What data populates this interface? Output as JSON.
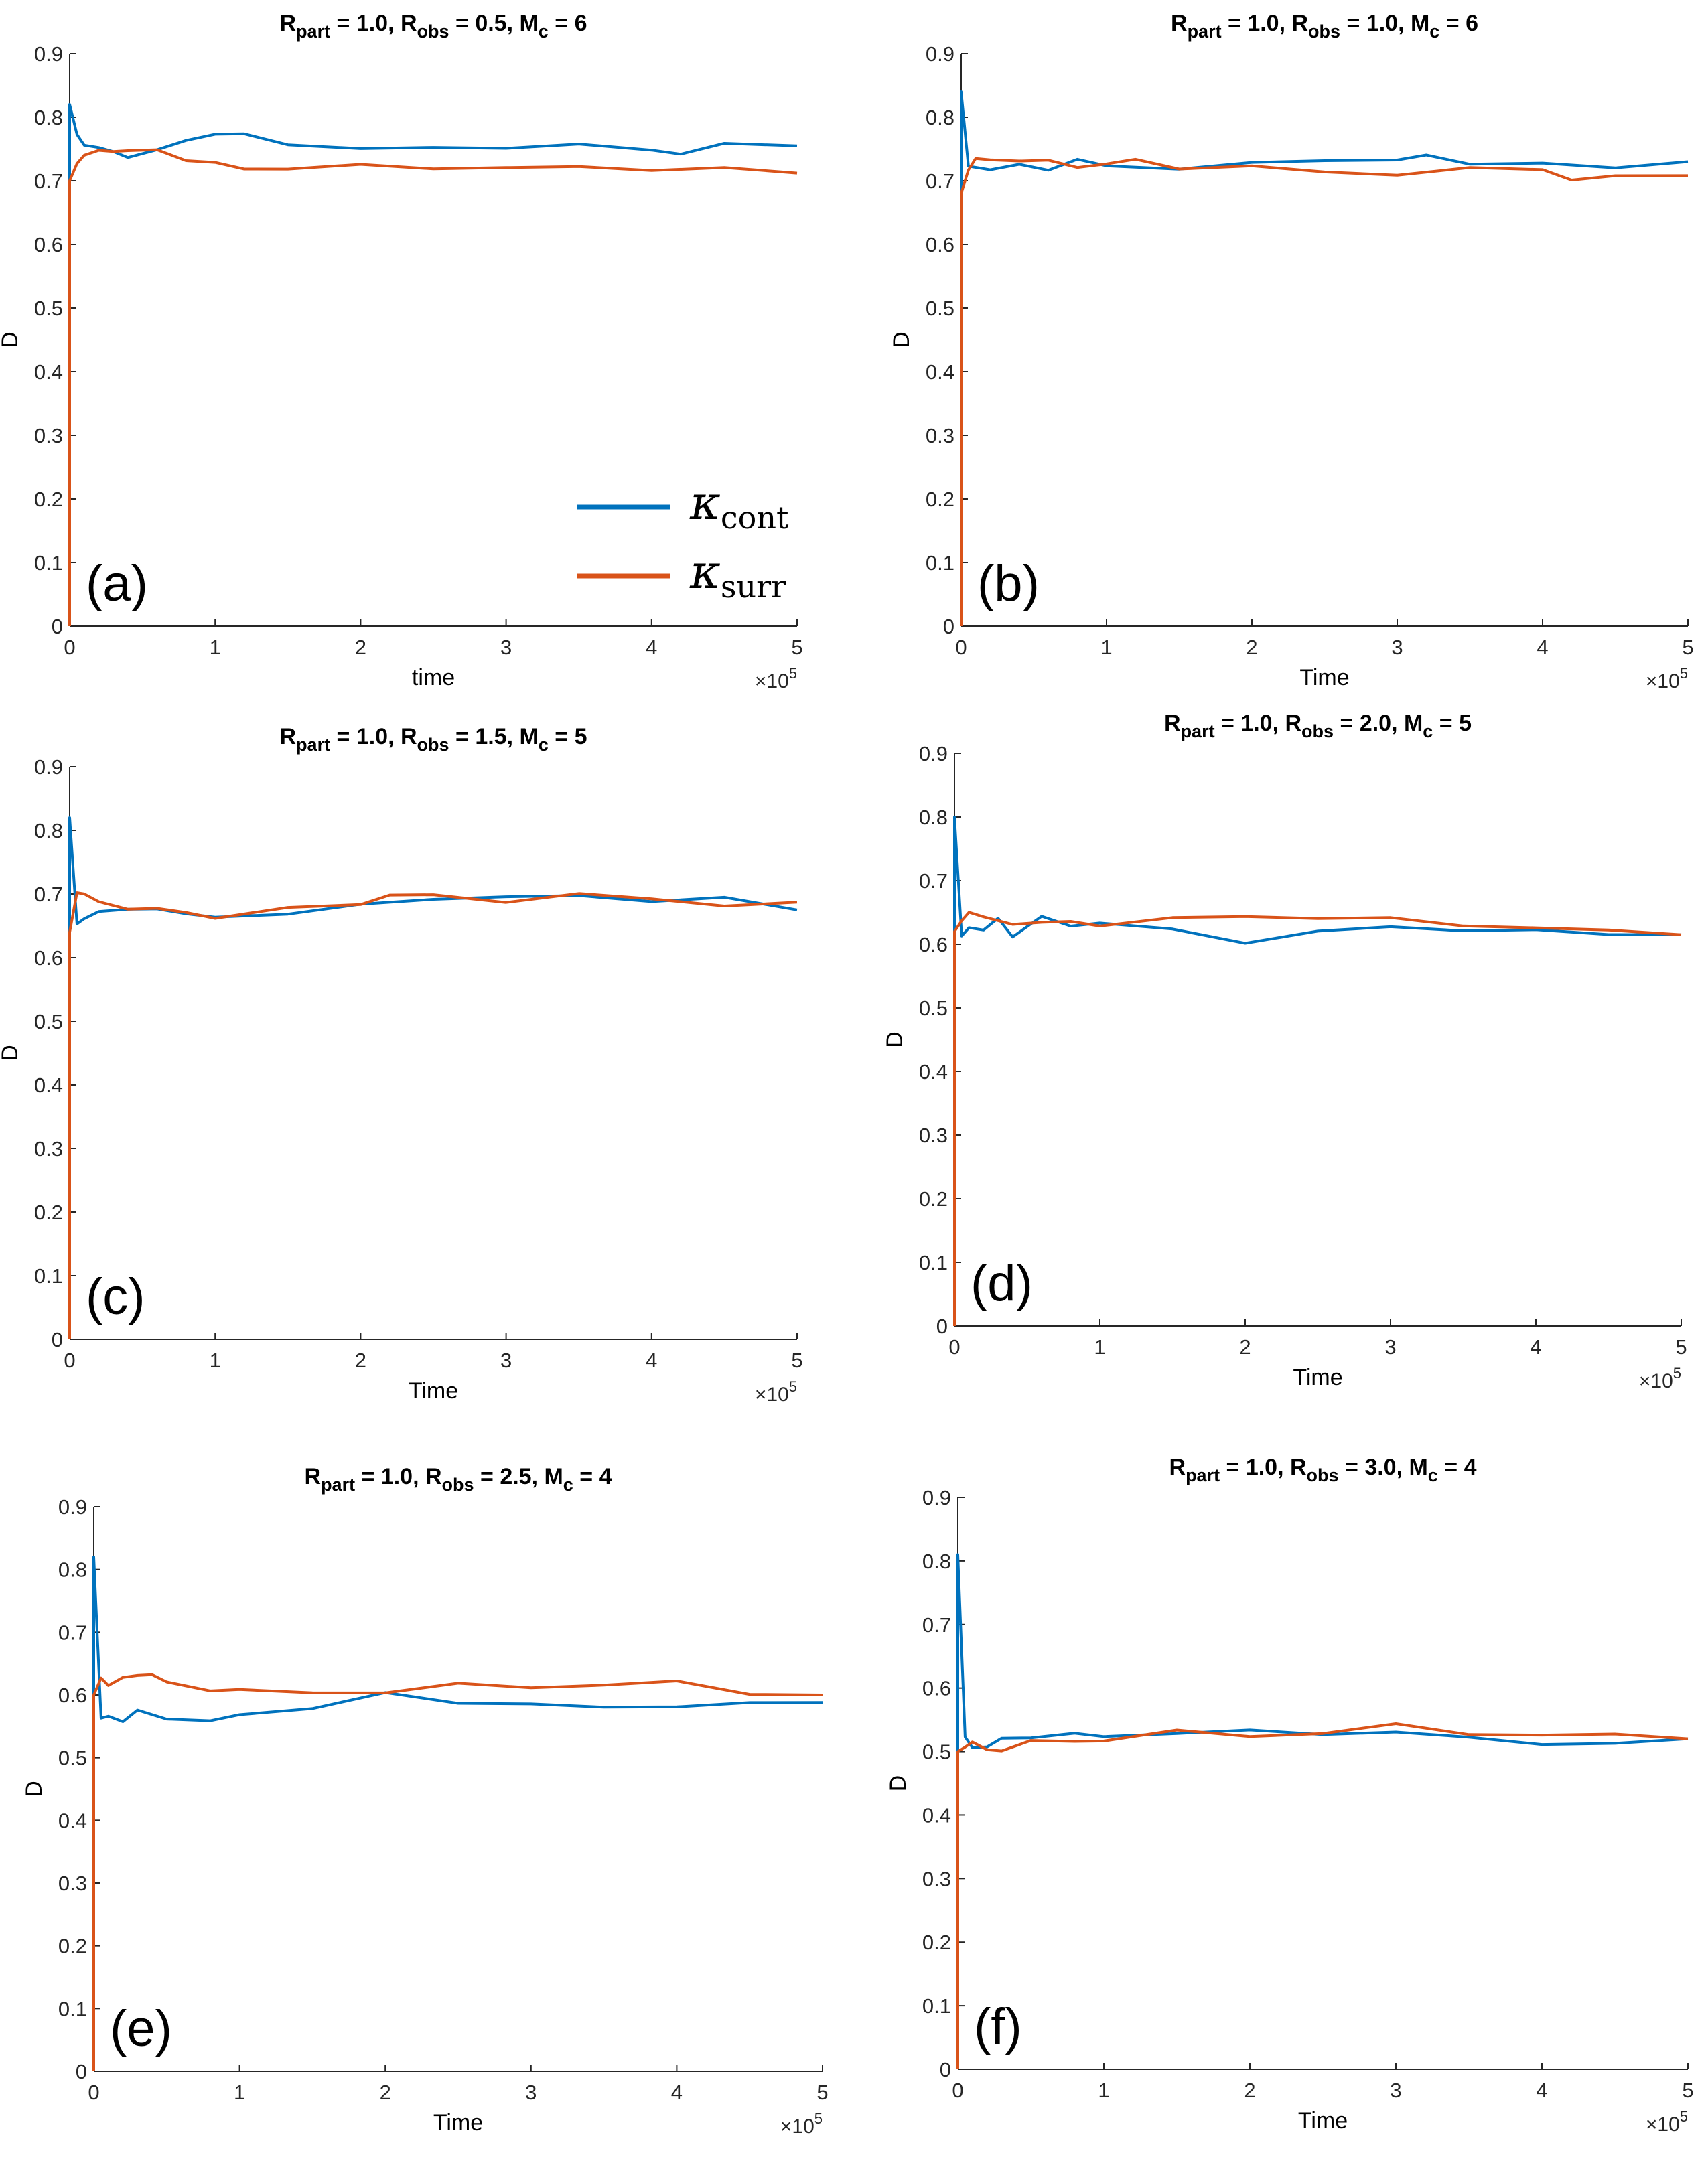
{
  "colors": {
    "cont": "#0072bd",
    "surr": "#d95319",
    "axis": "#262626"
  },
  "legend": {
    "cont_label": "κcont",
    "cont_base": "κ",
    "cont_sub": "cont",
    "surr_label": "κsurr",
    "surr_base": "κ",
    "surr_sub": "surr"
  },
  "exponent_label": "×10^5",
  "chart_data": [
    {
      "type": "line",
      "panel": "(a)",
      "title": "R_part = 1.0, R_obs = 0.5, M_c = 6",
      "title_parts": {
        "r_part": "1.0",
        "r_obs": "0.5",
        "m_c": "6"
      },
      "xlabel": "time",
      "ylabel": "D",
      "xlim": [
        0,
        500000
      ],
      "ylim": [
        0,
        0.9
      ],
      "xticks": [
        "0",
        "1",
        "2",
        "3",
        "4",
        "5"
      ],
      "yticks": [
        "0",
        "0.1",
        "0.2",
        "0.3",
        "0.4",
        "0.5",
        "0.6",
        "0.7",
        "0.8",
        "0.9"
      ],
      "legend": "inside, lower-right",
      "series": [
        {
          "name": "κcont",
          "start": 0.82,
          "x": [
            0,
            5000,
            10000,
            20000,
            30000,
            40000,
            60000,
            80000,
            100000,
            120000,
            150000,
            200000,
            250000,
            300000,
            350000,
            400000,
            420000,
            450000,
            500000
          ],
          "values": [
            0.82,
            0.77,
            0.76,
            0.75,
            0.745,
            0.74,
            0.745,
            0.765,
            0.775,
            0.77,
            0.76,
            0.75,
            0.75,
            0.755,
            0.755,
            0.748,
            0.745,
            0.755,
            0.755
          ]
        },
        {
          "name": "κsurr",
          "start": 0.7,
          "x": [
            0,
            5000,
            10000,
            20000,
            30000,
            40000,
            60000,
            80000,
            100000,
            120000,
            150000,
            200000,
            250000,
            300000,
            350000,
            400000,
            450000,
            500000
          ],
          "values": [
            0.7,
            0.73,
            0.74,
            0.745,
            0.75,
            0.745,
            0.748,
            0.735,
            0.725,
            0.72,
            0.72,
            0.722,
            0.722,
            0.72,
            0.72,
            0.72,
            0.718,
            0.712
          ]
        }
      ]
    },
    {
      "type": "line",
      "panel": "(b)",
      "title": "R_part = 1.0, R_obs = 1.0, M_c = 6",
      "title_parts": {
        "r_part": "1.0",
        "r_obs": "1.0",
        "m_c": "6"
      },
      "xlabel": "Time",
      "ylabel": "D",
      "xlim": [
        0,
        500000
      ],
      "ylim": [
        0,
        0.9
      ],
      "xticks": [
        "0",
        "1",
        "2",
        "3",
        "4",
        "5"
      ],
      "yticks": [
        "0",
        "0.1",
        "0.2",
        "0.3",
        "0.4",
        "0.5",
        "0.6",
        "0.7",
        "0.8",
        "0.9"
      ],
      "series": [
        {
          "name": "κcont",
          "start": 0.84,
          "x": [
            0,
            5000,
            10000,
            20000,
            40000,
            60000,
            80000,
            100000,
            150000,
            200000,
            250000,
            300000,
            320000,
            350000,
            400000,
            450000,
            500000
          ],
          "values": [
            0.84,
            0.72,
            0.725,
            0.715,
            0.725,
            0.72,
            0.73,
            0.725,
            0.72,
            0.725,
            0.735,
            0.732,
            0.738,
            0.73,
            0.725,
            0.72,
            0.73
          ]
        },
        {
          "name": "κsurr",
          "start": 0.68,
          "x": [
            0,
            5000,
            10000,
            20000,
            40000,
            60000,
            80000,
            100000,
            120000,
            150000,
            200000,
            250000,
            300000,
            350000,
            400000,
            420000,
            450000,
            500000
          ],
          "values": [
            0.68,
            0.72,
            0.735,
            0.73,
            0.735,
            0.73,
            0.72,
            0.73,
            0.73,
            0.72,
            0.725,
            0.71,
            0.712,
            0.72,
            0.715,
            0.705,
            0.705,
            0.708
          ]
        }
      ]
    },
    {
      "type": "line",
      "panel": "(c)",
      "title": "R_part = 1.0, R_obs = 1.5, M_c = 5",
      "title_parts": {
        "r_part": "1.0",
        "r_obs": "1.5",
        "m_c": "5"
      },
      "xlabel": "Time",
      "ylabel": "D",
      "xlim": [
        0,
        500000
      ],
      "ylim": [
        0,
        0.9
      ],
      "xticks": [
        "0",
        "1",
        "2",
        "3",
        "4",
        "5"
      ],
      "yticks": [
        "0",
        "0.1",
        "0.2",
        "0.3",
        "0.4",
        "0.5",
        "0.6",
        "0.7",
        "0.8",
        "0.9"
      ],
      "series": [
        {
          "name": "κcont",
          "start": 0.82,
          "x": [
            0,
            5000,
            10000,
            20000,
            40000,
            60000,
            80000,
            100000,
            150000,
            200000,
            250000,
            300000,
            350000,
            400000,
            450000,
            500000
          ],
          "values": [
            0.82,
            0.65,
            0.665,
            0.67,
            0.675,
            0.68,
            0.665,
            0.665,
            0.67,
            0.68,
            0.695,
            0.695,
            0.695,
            0.692,
            0.692,
            0.675
          ]
        },
        {
          "name": "κsurr",
          "start": 0.64,
          "x": [
            0,
            5000,
            10000,
            20000,
            40000,
            60000,
            80000,
            100000,
            150000,
            200000,
            220000,
            250000,
            300000,
            350000,
            400000,
            450000,
            500000
          ],
          "values": [
            0.64,
            0.705,
            0.7,
            0.685,
            0.68,
            0.675,
            0.67,
            0.665,
            0.675,
            0.685,
            0.7,
            0.695,
            0.69,
            0.7,
            0.69,
            0.685,
            0.687
          ]
        }
      ]
    },
    {
      "type": "line",
      "panel": "(d)",
      "title": "R_part = 1.0, R_obs = 2.0, M_c = 5",
      "title_parts": {
        "r_part": "1.0",
        "r_obs": "2.0",
        "m_c": "5"
      },
      "xlabel": "Time",
      "ylabel": "D",
      "xlim": [
        0,
        500000
      ],
      "ylim": [
        0,
        0.9
      ],
      "xticks": [
        "0",
        "1",
        "2",
        "3",
        "4",
        "5"
      ],
      "yticks": [
        "0",
        "0.1",
        "0.2",
        "0.3",
        "0.4",
        "0.5",
        "0.6",
        "0.7",
        "0.8",
        "0.9"
      ],
      "series": [
        {
          "name": "κcont",
          "start": 0.8,
          "x": [
            0,
            5000,
            10000,
            20000,
            30000,
            40000,
            60000,
            80000,
            100000,
            150000,
            200000,
            250000,
            300000,
            350000,
            400000,
            450000,
            500000
          ],
          "values": [
            0.8,
            0.61,
            0.63,
            0.62,
            0.64,
            0.615,
            0.64,
            0.63,
            0.635,
            0.62,
            0.605,
            0.62,
            0.625,
            0.625,
            0.62,
            0.615,
            0.615
          ]
        },
        {
          "name": "κsurr",
          "start": 0.62,
          "x": [
            0,
            5000,
            10000,
            20000,
            40000,
            60000,
            80000,
            100000,
            150000,
            200000,
            250000,
            300000,
            350000,
            400000,
            450000,
            500000
          ],
          "values": [
            0.62,
            0.64,
            0.65,
            0.64,
            0.635,
            0.632,
            0.635,
            0.632,
            0.638,
            0.645,
            0.642,
            0.638,
            0.632,
            0.625,
            0.62,
            0.615
          ]
        }
      ]
    },
    {
      "type": "line",
      "panel": "(e)",
      "title": "R_part = 1.0, R_obs = 2.5, M_c = 4",
      "title_parts": {
        "r_part": "1.0",
        "r_obs": "2.5",
        "m_c": "4"
      },
      "xlabel": "Time",
      "ylabel": "D",
      "xlim": [
        0,
        500000
      ],
      "ylim": [
        0,
        0.9
      ],
      "xticks": [
        "0",
        "1",
        "2",
        "3",
        "4",
        "5"
      ],
      "yticks": [
        "0",
        "0.1",
        "0.2",
        "0.3",
        "0.4",
        "0.5",
        "0.6",
        "0.7",
        "0.8",
        "0.9"
      ],
      "series": [
        {
          "name": "κcont",
          "start": 0.82,
          "x": [
            0,
            5000,
            10000,
            20000,
            30000,
            50000,
            80000,
            100000,
            150000,
            200000,
            250000,
            300000,
            350000,
            400000,
            450000,
            500000
          ],
          "values": [
            0.82,
            0.56,
            0.57,
            0.555,
            0.575,
            0.565,
            0.555,
            0.57,
            0.58,
            0.6,
            0.59,
            0.585,
            0.578,
            0.585,
            0.585,
            0.588
          ]
        },
        {
          "name": "κsurr",
          "start": 0.6,
          "x": [
            0,
            5000,
            10000,
            20000,
            30000,
            40000,
            50000,
            80000,
            100000,
            150000,
            200000,
            250000,
            300000,
            350000,
            400000,
            450000,
            500000
          ],
          "values": [
            0.6,
            0.63,
            0.615,
            0.625,
            0.635,
            0.63,
            0.62,
            0.61,
            0.605,
            0.605,
            0.605,
            0.615,
            0.615,
            0.615,
            0.62,
            0.605,
            0.6
          ]
        }
      ]
    },
    {
      "type": "line",
      "panel": "(f)",
      "title": "R_part = 1.0, R_obs = 3.0, M_c = 4",
      "title_parts": {
        "r_part": "1.0",
        "r_obs": "3.0",
        "m_c": "4"
      },
      "xlabel": "Time",
      "ylabel": "D",
      "xlim": [
        0,
        500000
      ],
      "ylim": [
        0,
        0.9
      ],
      "xticks": [
        "0",
        "1",
        "2",
        "3",
        "4",
        "5"
      ],
      "yticks": [
        "0",
        "0.1",
        "0.2",
        "0.3",
        "0.4",
        "0.5",
        "0.6",
        "0.7",
        "0.8",
        "0.9"
      ],
      "series": [
        {
          "name": "κcont",
          "start": 0.81,
          "x": [
            0,
            5000,
            10000,
            20000,
            30000,
            50000,
            80000,
            100000,
            150000,
            200000,
            250000,
            300000,
            350000,
            400000,
            450000,
            500000
          ],
          "values": [
            0.81,
            0.52,
            0.51,
            0.505,
            0.52,
            0.525,
            0.525,
            0.525,
            0.53,
            0.53,
            0.53,
            0.53,
            0.52,
            0.515,
            0.51,
            0.52
          ]
        },
        {
          "name": "κsurr",
          "start": 0.5,
          "x": [
            0,
            5000,
            10000,
            20000,
            30000,
            50000,
            80000,
            100000,
            150000,
            200000,
            250000,
            300000,
            350000,
            400000,
            450000,
            500000
          ],
          "values": [
            0.5,
            0.51,
            0.515,
            0.5,
            0.505,
            0.515,
            0.515,
            0.52,
            0.53,
            0.525,
            0.53,
            0.54,
            0.53,
            0.525,
            0.525,
            0.52
          ]
        }
      ]
    }
  ]
}
